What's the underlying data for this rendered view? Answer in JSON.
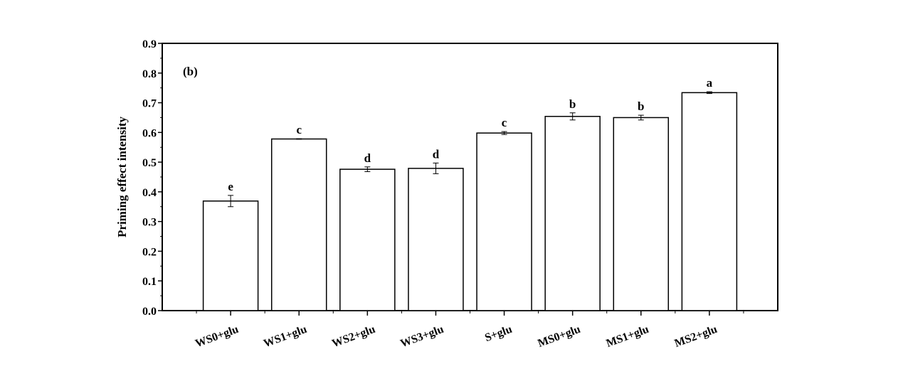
{
  "chart_data": {
    "type": "bar",
    "panel_label": "(b)",
    "title": "",
    "xlabel": "",
    "ylabel": "Priming effect intensity",
    "ylim": [
      0,
      0.9
    ],
    "yticks": [
      "0.0",
      "0.1",
      "0.2",
      "0.3",
      "0.4",
      "0.5",
      "0.6",
      "0.7",
      "0.8",
      "0.9"
    ],
    "grid": false,
    "categories": [
      "WS0+glu",
      "WS1+glu",
      "WS2+glu",
      "WS3+glu",
      "S+glu",
      "MS0+glu",
      "MS1+glu",
      "MS2+glu"
    ],
    "values": [
      0.369,
      0.578,
      0.476,
      0.479,
      0.598,
      0.654,
      0.65,
      0.734
    ],
    "errors": [
      0.019,
      0.001,
      0.008,
      0.018,
      0.005,
      0.012,
      0.008,
      0.003
    ],
    "significance_letters": [
      "e",
      "c",
      "d",
      "d",
      "c",
      "b",
      "b",
      "a"
    ],
    "bar_fill": "#ffffff",
    "bar_stroke": "#000000"
  }
}
